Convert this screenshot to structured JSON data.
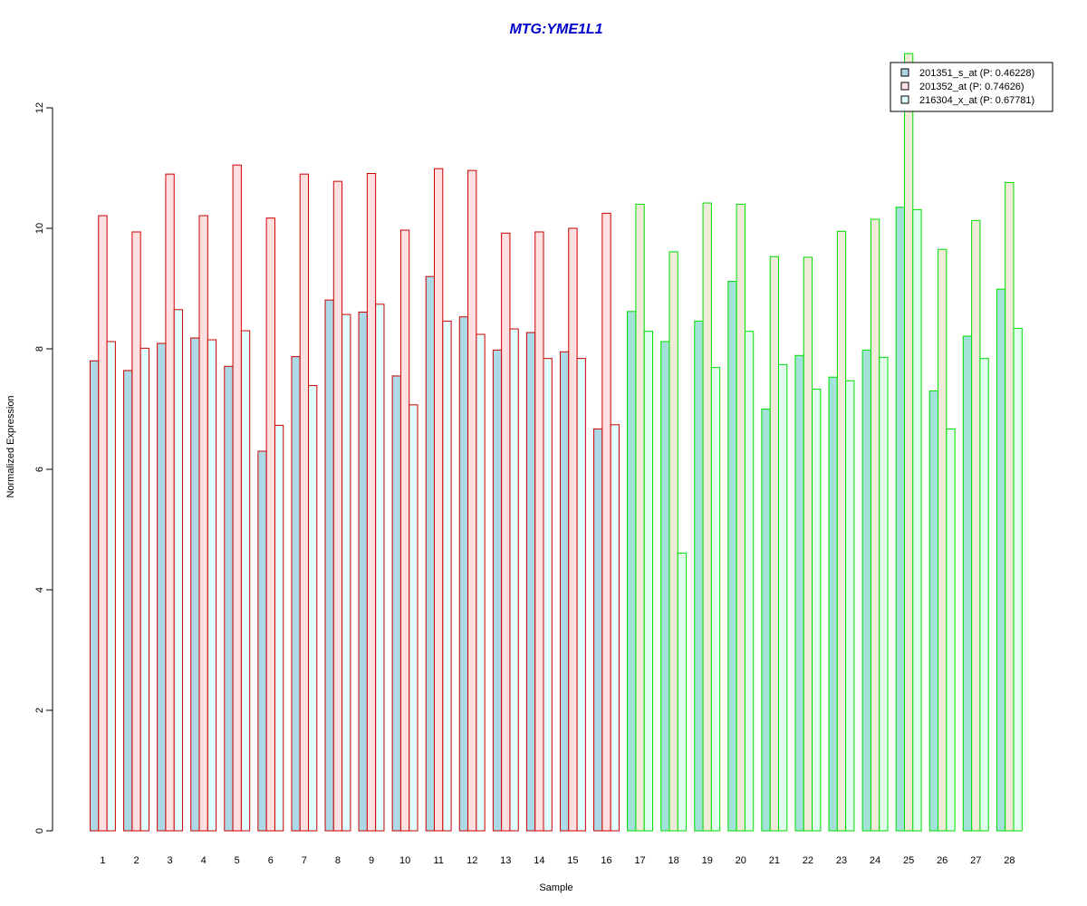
{
  "chart_data": {
    "type": "bar",
    "title": "MTG:YME1L1",
    "xlabel": "Sample",
    "ylabel": "Normalized Expression",
    "ylim": [
      0,
      12
    ],
    "yticks": [
      "0",
      "2",
      "4",
      "6",
      "8",
      "10",
      "12"
    ],
    "grid": false,
    "legend_position": "top-right",
    "title_color": "#0000cc",
    "categories": [
      "1",
      "2",
      "3",
      "4",
      "5",
      "6",
      "7",
      "8",
      "9",
      "10",
      "11",
      "12",
      "13",
      "14",
      "15",
      "16",
      "17",
      "18",
      "19",
      "20",
      "21",
      "22",
      "23",
      "24",
      "25",
      "26",
      "27",
      "28"
    ],
    "group_border_colors": [
      "#cc0000",
      "#cc0000",
      "#cc0000",
      "#cc0000",
      "#cc0000",
      "#cc0000",
      "#cc0000",
      "#cc0000",
      "#cc0000",
      "#cc0000",
      "#cc0000",
      "#cc0000",
      "#cc0000",
      "#cc0000",
      "#cc0000",
      "#cc0000",
      "#00dd00",
      "#00dd00",
      "#00dd00",
      "#00dd00",
      "#00dd00",
      "#00dd00",
      "#00dd00",
      "#00dd00",
      "#00dd00",
      "#00dd00",
      "#00dd00",
      "#00dd00"
    ],
    "series": [
      {
        "name": "201351_s_at (P: 0.46228)",
        "fill": "#add8e6",
        "fill_alt": "#a2e2d8",
        "values": [
          7.8,
          7.64,
          8.09,
          8.18,
          7.71,
          6.3,
          7.87,
          8.81,
          8.61,
          7.55,
          9.2,
          8.53,
          7.98,
          8.27,
          7.95,
          6.67,
          8.62,
          8.12,
          8.46,
          9.12,
          7.0,
          7.89,
          7.53,
          7.98,
          10.35,
          7.3,
          8.21,
          8.99
        ]
      },
      {
        "name": "201352_at (P: 0.74626)",
        "fill": "#ffe0e0",
        "fill_alt": "#f0ead8",
        "values": [
          10.21,
          9.94,
          10.9,
          10.21,
          11.05,
          10.17,
          10.9,
          10.78,
          10.91,
          9.97,
          10.99,
          10.96,
          9.92,
          9.94,
          10.0,
          10.25,
          10.4,
          9.61,
          10.42,
          10.4,
          9.53,
          9.52,
          9.95,
          10.15,
          12.9,
          9.65,
          10.13,
          10.76
        ]
      },
      {
        "name": "216304_x_at (P: 0.67781)",
        "fill": "#e0ffff",
        "fill_alt": "#e0ffee",
        "values": [
          8.12,
          8.01,
          8.65,
          8.15,
          8.3,
          6.73,
          7.39,
          8.57,
          8.74,
          7.07,
          8.46,
          8.24,
          8.33,
          7.84,
          7.84,
          6.74,
          8.29,
          4.61,
          7.69,
          8.29,
          7.74,
          7.33,
          7.47,
          7.86,
          10.31,
          6.67,
          7.84,
          8.34
        ]
      }
    ]
  }
}
